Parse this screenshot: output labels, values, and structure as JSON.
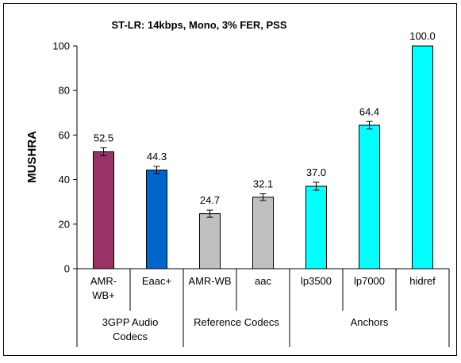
{
  "chart_data": {
    "type": "bar",
    "title": "ST-LR:  14kbps, Mono, 3% FER, PSS",
    "ylabel": "MUSHRA",
    "xlabel": "",
    "ylim": [
      0,
      100
    ],
    "yticks": [
      0,
      20,
      40,
      60,
      80,
      100
    ],
    "grid": false,
    "legend": "none",
    "categories": [
      "AMR-WB+",
      "Eaac+",
      "AMR-WB",
      "aac",
      "lp3500",
      "lp7000",
      "hidref"
    ],
    "category_display": [
      [
        "AMR-",
        "WB+"
      ],
      [
        "Eaac+"
      ],
      [
        "AMR-WB"
      ],
      [
        "aac"
      ],
      [
        "lp3500"
      ],
      [
        "lp7000"
      ],
      [
        "hidref"
      ]
    ],
    "values": [
      52.5,
      44.3,
      24.7,
      32.1,
      37.0,
      64.4,
      100.0
    ],
    "value_labels": [
      "52.5",
      "44.3",
      "24.7",
      "32.1",
      "37.0",
      "64.4",
      "100.0"
    ],
    "error_bars": [
      1.8,
      1.6,
      1.6,
      1.5,
      1.8,
      1.7,
      0
    ],
    "colors": [
      "#993366",
      "#0066CC",
      "#C0C0C0",
      "#C0C0C0",
      "#00FFFF",
      "#00FFFF",
      "#00FFFF"
    ],
    "groups": [
      {
        "label": [
          "3GPP Audio",
          "Codecs"
        ],
        "span": 2
      },
      {
        "label": [
          "Reference Codecs"
        ],
        "span": 2
      },
      {
        "label": [
          "Anchors"
        ],
        "span": 3
      }
    ]
  }
}
